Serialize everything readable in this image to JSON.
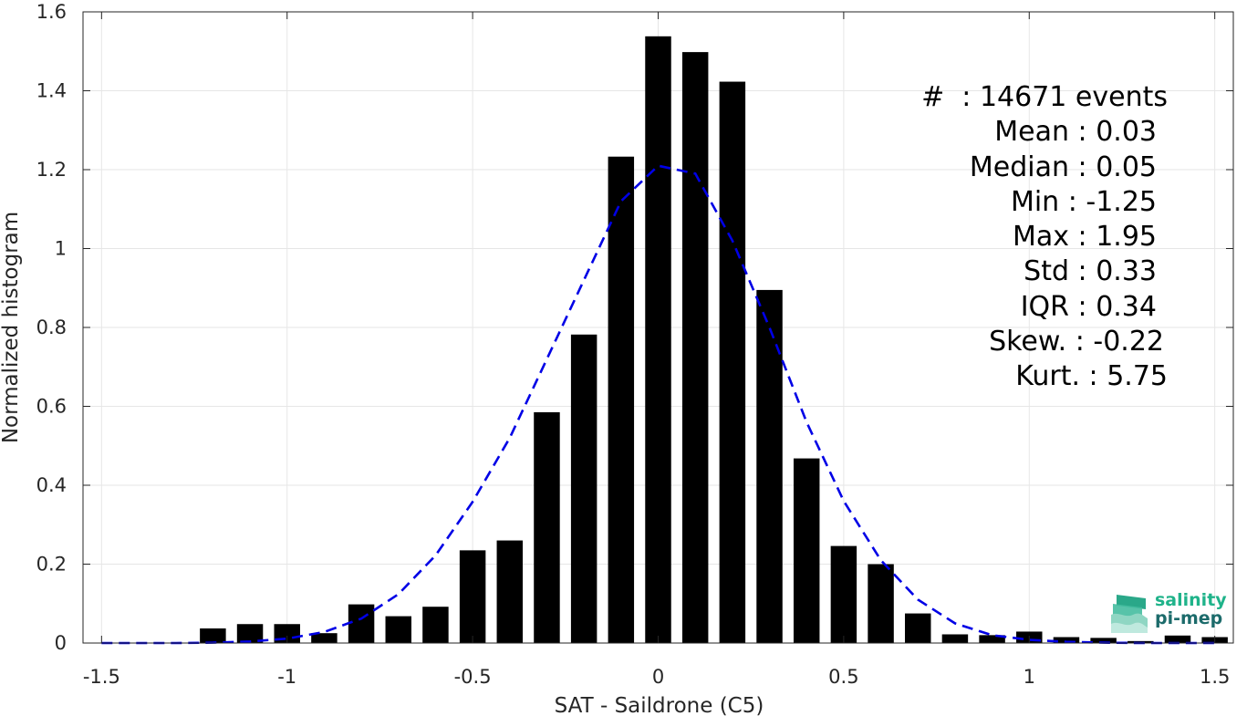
{
  "chart_data": {
    "type": "bar",
    "xlabel": "SAT - Saildrone (C5)",
    "ylabel": "Normalized histogram",
    "xlim": [
      -1.55,
      1.55
    ],
    "ylim": [
      0,
      1.6
    ],
    "xticks": [
      -1.5,
      -1,
      -0.5,
      0,
      0.5,
      1,
      1.5
    ],
    "xtick_labels": [
      "-1.5",
      "-1",
      "-0.5",
      "0",
      "0.5",
      "1",
      "1.5"
    ],
    "yticks": [
      0,
      0.2,
      0.4,
      0.6,
      0.8,
      1,
      1.2,
      1.4,
      1.6
    ],
    "ytick_labels": [
      "0",
      "0.2",
      "0.4",
      "0.6",
      "0.8",
      "1",
      "1.2",
      "1.4",
      "1.6"
    ],
    "grid": true,
    "bar_color": "#000000",
    "bar_width": 0.07,
    "bars": {
      "x": [
        -1.2,
        -1.1,
        -1.0,
        -0.9,
        -0.8,
        -0.7,
        -0.6,
        -0.5,
        -0.4,
        -0.3,
        -0.2,
        -0.1,
        0.0,
        0.1,
        0.2,
        0.3,
        0.4,
        0.5,
        0.6,
        0.7,
        0.8,
        0.9,
        1.0,
        1.1,
        1.2,
        1.3,
        1.4,
        1.5
      ],
      "values": [
        0.037,
        0.048,
        0.048,
        0.025,
        0.098,
        0.068,
        0.092,
        0.235,
        0.26,
        0.585,
        0.782,
        1.233,
        1.538,
        1.498,
        1.423,
        0.895,
        0.468,
        0.246,
        0.2,
        0.075,
        0.022,
        0.02,
        0.029,
        0.015,
        0.013,
        0.005,
        0.019,
        0.015
      ]
    },
    "fit_curve": {
      "style": "dashed",
      "color": "#0000e6",
      "x": [
        -1.5,
        -1.4,
        -1.3,
        -1.2,
        -1.1,
        -1.0,
        -0.9,
        -0.8,
        -0.7,
        -0.6,
        -0.5,
        -0.4,
        -0.3,
        -0.2,
        -0.1,
        0.0,
        0.1,
        0.2,
        0.3,
        0.4,
        0.5,
        0.6,
        0.7,
        0.8,
        0.9,
        1.0,
        1.1,
        1.2,
        1.3,
        1.4,
        1.5
      ],
      "y": [
        0.0,
        0.0,
        0.0,
        0.001,
        0.004,
        0.011,
        0.028,
        0.062,
        0.124,
        0.222,
        0.358,
        0.52,
        0.72,
        0.92,
        1.12,
        1.21,
        1.19,
        1.02,
        0.8,
        0.56,
        0.36,
        0.21,
        0.11,
        0.05,
        0.02,
        0.008,
        0.003,
        0.001,
        0.0,
        0.0,
        0.0
      ]
    }
  },
  "stats": {
    "events": "#  : 14671 events",
    "mean": "Mean : 0.03",
    "median": "Median : 0.05",
    "min": "Min : -1.25",
    "max": "Max : 1.95",
    "std": "Std : 0.33",
    "iqr": "IQR : 0.34",
    "skew": "Skew. : -0.22",
    "kurt": "Kurt. : 5.75"
  },
  "logo": {
    "line1": "salinity",
    "line2": "pi-mep",
    "color1": "#1fb38a",
    "color2": "#1c6b6b"
  }
}
